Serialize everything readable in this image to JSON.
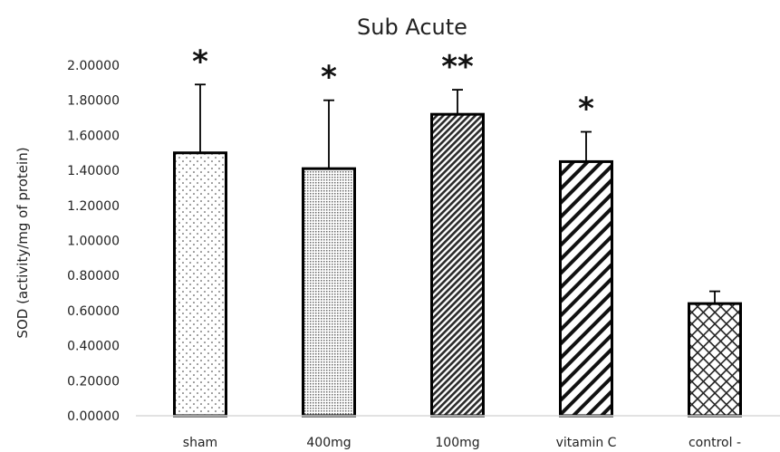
{
  "chart_data": {
    "type": "bar",
    "title": "Sub Acute",
    "xlabel": "",
    "ylabel": "SOD (activity/mg of protein)",
    "ylim": [
      0,
      2
    ],
    "y_ticks": [
      "0.00000",
      "0.20000",
      "0.40000",
      "0.60000",
      "0.80000",
      "1.00000",
      "1.20000",
      "1.40000",
      "1.60000",
      "1.80000",
      "2.00000"
    ],
    "categories": [
      "sham",
      "400mg",
      "100mg",
      "vitamin C",
      "control -"
    ],
    "values": [
      1.5,
      1.41,
      1.72,
      1.45,
      0.64
    ],
    "error_upper": [
      0.39,
      0.39,
      0.14,
      0.17,
      0.07
    ],
    "significance": [
      "*",
      "*",
      "**",
      "*",
      ""
    ],
    "patterns": [
      "sparse-dots",
      "dense-dots",
      "dense-diagonal",
      "wide-diagonal",
      "crosshatch"
    ],
    "grid": false,
    "legend": "none"
  }
}
